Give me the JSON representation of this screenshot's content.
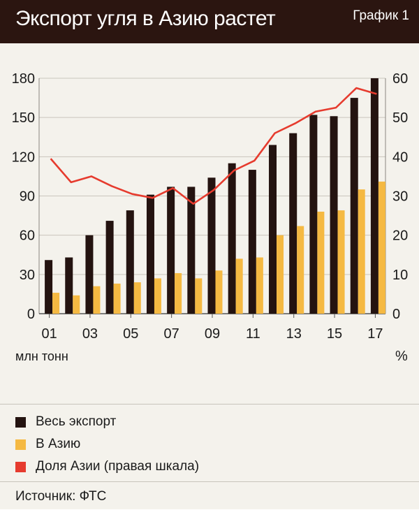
{
  "header": {
    "title": "Экспорт угля в Азию растет",
    "chart_label": "График 1"
  },
  "colors": {
    "header_bg": "#2b1510",
    "total": "#241310",
    "asia": "#f5b942",
    "share": "#e63b2e"
  },
  "chart_data": {
    "type": "bar",
    "title": "Экспорт угля в Азию растет",
    "categories": [
      "01",
      "02",
      "03",
      "04",
      "05",
      "06",
      "07",
      "08",
      "09",
      "10",
      "11",
      "12",
      "13",
      "14",
      "15",
      "16",
      "17"
    ],
    "x_tick_labels": [
      "01",
      "03",
      "05",
      "07",
      "09",
      "11",
      "13",
      "15",
      "17"
    ],
    "xlabel": "",
    "ylabel": "млн тонн",
    "ylabel_right": "%",
    "ylim": [
      0,
      180
    ],
    "ylim_right": [
      0,
      60
    ],
    "y_ticks": [
      "0",
      "30",
      "60",
      "90",
      "120",
      "150",
      "180"
    ],
    "y_ticks_right": [
      "0",
      "10",
      "20",
      "30",
      "40",
      "50",
      "60"
    ],
    "series": [
      {
        "name": "Весь экспорт",
        "type": "bar",
        "axis": "left",
        "values": [
          41,
          43,
          60,
          71,
          79,
          91,
          97,
          97,
          104,
          115,
          110,
          129,
          138,
          152,
          151,
          165,
          180
        ]
      },
      {
        "name": "В Азию",
        "type": "bar",
        "axis": "left",
        "values": [
          16,
          14,
          21,
          23,
          24,
          27,
          31,
          27,
          33,
          42,
          43,
          60,
          67,
          78,
          79,
          95,
          101
        ]
      },
      {
        "name": "Доля Азии (правая шкала)",
        "type": "line",
        "axis": "right",
        "values": [
          39.5,
          33.5,
          35,
          32.5,
          30.5,
          29.5,
          32,
          28,
          31.5,
          36.5,
          39,
          46,
          48.5,
          51.5,
          52.5,
          57.5,
          56
        ]
      }
    ]
  },
  "legend": {
    "total_label": "Весь экспорт",
    "asia_label": "В Азию",
    "share_label": "Доля Азии (правая шкала)"
  },
  "source": "Источник: ФТС"
}
